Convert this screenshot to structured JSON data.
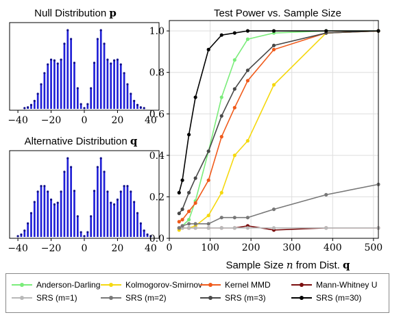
{
  "chart_data": [
    {
      "type": "bar",
      "title": "Null Distribution",
      "title_symbol": "p",
      "xlim": [
        -45,
        45
      ],
      "xticks": [
        "−40",
        "−20",
        "0",
        "20",
        "40"
      ],
      "xtick_values": [
        -40,
        -20,
        0,
        20,
        40
      ],
      "bar_color": "#1f1fd6",
      "bins": [
        {
          "x": -36,
          "h": 0.01
        },
        {
          "x": -34,
          "h": 0.02
        },
        {
          "x": -32,
          "h": 0.05
        },
        {
          "x": -30,
          "h": 0.1
        },
        {
          "x": -28,
          "h": 0.19
        },
        {
          "x": -26,
          "h": 0.31
        },
        {
          "x": -24,
          "h": 0.45
        },
        {
          "x": -22,
          "h": 0.56
        },
        {
          "x": -20,
          "h": 0.62
        },
        {
          "x": -18,
          "h": 0.61
        },
        {
          "x": -16,
          "h": 0.57
        },
        {
          "x": -14,
          "h": 0.62
        },
        {
          "x": -12,
          "h": 0.82
        },
        {
          "x": -10,
          "h": 0.99
        },
        {
          "x": -8,
          "h": 0.88
        },
        {
          "x": -6,
          "h": 0.58
        },
        {
          "x": -4,
          "h": 0.26
        },
        {
          "x": -2,
          "h": 0.06
        },
        {
          "x": 0,
          "h": 0.01
        },
        {
          "x": 2,
          "h": 0.06
        },
        {
          "x": 4,
          "h": 0.26
        },
        {
          "x": 6,
          "h": 0.58
        },
        {
          "x": 8,
          "h": 0.88
        },
        {
          "x": 10,
          "h": 0.99
        },
        {
          "x": 12,
          "h": 0.82
        },
        {
          "x": 14,
          "h": 0.62
        },
        {
          "x": 16,
          "h": 0.57
        },
        {
          "x": 18,
          "h": 0.61
        },
        {
          "x": 20,
          "h": 0.62
        },
        {
          "x": 22,
          "h": 0.56
        },
        {
          "x": 24,
          "h": 0.45
        },
        {
          "x": 26,
          "h": 0.31
        },
        {
          "x": 28,
          "h": 0.19
        },
        {
          "x": 30,
          "h": 0.1
        },
        {
          "x": 32,
          "h": 0.05
        },
        {
          "x": 34,
          "h": 0.02
        },
        {
          "x": 36,
          "h": 0.01
        }
      ]
    },
    {
      "type": "bar",
      "title": "Alternative Distribution",
      "title_symbol": "q",
      "xlim": [
        -45,
        45
      ],
      "xticks": [
        "−40",
        "−20",
        "0",
        "20",
        "40"
      ],
      "xtick_values": [
        -40,
        -20,
        0,
        20,
        40
      ],
      "bar_color": "#1f1fd6",
      "bins": [
        {
          "x": -40,
          "h": 0.01
        },
        {
          "x": -38,
          "h": 0.03
        },
        {
          "x": -36,
          "h": 0.08
        },
        {
          "x": -34,
          "h": 0.17
        },
        {
          "x": -32,
          "h": 0.3
        },
        {
          "x": -30,
          "h": 0.44
        },
        {
          "x": -28,
          "h": 0.57
        },
        {
          "x": -26,
          "h": 0.64
        },
        {
          "x": -24,
          "h": 0.64
        },
        {
          "x": -22,
          "h": 0.57
        },
        {
          "x": -20,
          "h": 0.47
        },
        {
          "x": -18,
          "h": 0.41
        },
        {
          "x": -16,
          "h": 0.43
        },
        {
          "x": -14,
          "h": 0.57
        },
        {
          "x": -12,
          "h": 0.82
        },
        {
          "x": -10,
          "h": 0.99
        },
        {
          "x": -8,
          "h": 0.88
        },
        {
          "x": -6,
          "h": 0.58
        },
        {
          "x": -4,
          "h": 0.26
        },
        {
          "x": -2,
          "h": 0.06
        },
        {
          "x": 0,
          "h": 0.01
        },
        {
          "x": 2,
          "h": 0.06
        },
        {
          "x": 4,
          "h": 0.26
        },
        {
          "x": 6,
          "h": 0.58
        },
        {
          "x": 8,
          "h": 0.88
        },
        {
          "x": 10,
          "h": 0.99
        },
        {
          "x": 12,
          "h": 0.82
        },
        {
          "x": 14,
          "h": 0.57
        },
        {
          "x": 16,
          "h": 0.43
        },
        {
          "x": 18,
          "h": 0.41
        },
        {
          "x": 20,
          "h": 0.47
        },
        {
          "x": 22,
          "h": 0.57
        },
        {
          "x": 24,
          "h": 0.64
        },
        {
          "x": 26,
          "h": 0.64
        },
        {
          "x": 28,
          "h": 0.57
        },
        {
          "x": 30,
          "h": 0.44
        },
        {
          "x": 32,
          "h": 0.3
        },
        {
          "x": 34,
          "h": 0.17
        },
        {
          "x": 36,
          "h": 0.08
        },
        {
          "x": 38,
          "h": 0.03
        },
        {
          "x": 40,
          "h": 0.01
        }
      ]
    },
    {
      "type": "line",
      "title": "Test Power vs. Sample Size",
      "xlabel": "Sample Size",
      "xlabel_symbol": "n",
      "xlabel_suffix": "from Dist.",
      "xlabel_suffix_symbol": "q",
      "xlim": [
        0,
        512
      ],
      "ylim": [
        0,
        1.05
      ],
      "xticks": [
        0,
        100,
        200,
        300,
        400,
        500
      ],
      "yticks": [
        0.0,
        0.2,
        0.4,
        0.6,
        0.8,
        1.0
      ],
      "ytick_labels": [
        "0.0",
        "0.2",
        "0.4",
        "0.6",
        "0.8",
        "1.0"
      ],
      "x": [
        24,
        32,
        48,
        64,
        96,
        128,
        160,
        192,
        256,
        384,
        512
      ],
      "legend_position": "bottom",
      "series": [
        {
          "name": "Anderson-Darling",
          "color": "#7aec7a",
          "values": [
            0.05,
            0.06,
            0.09,
            0.18,
            0.42,
            0.68,
            0.86,
            0.96,
            0.99,
            1.0,
            1.0
          ]
        },
        {
          "name": "Kolmogorov-Smirnov",
          "color": "#f5d80f",
          "values": [
            0.04,
            0.05,
            0.05,
            0.06,
            0.11,
            0.22,
            0.4,
            0.47,
            0.74,
            0.99,
            1.0
          ]
        },
        {
          "name": "Kernel MMD",
          "color": "#f05a1a",
          "values": [
            0.08,
            0.09,
            0.13,
            0.17,
            0.28,
            0.49,
            0.63,
            0.76,
            0.91,
            0.99,
            1.0
          ]
        },
        {
          "name": "Mann-Whitney U",
          "color": "#7a0d0d",
          "values": [
            0.05,
            0.05,
            0.05,
            0.05,
            0.05,
            0.05,
            0.05,
            0.06,
            0.04,
            0.05,
            0.05
          ]
        },
        {
          "name": "SRS (m=1)",
          "color": "#b8b8b8",
          "values": [
            0.05,
            0.05,
            0.05,
            0.05,
            0.05,
            0.05,
            0.05,
            0.05,
            0.05,
            0.05,
            0.05
          ]
        },
        {
          "name": "SRS (m=2)",
          "color": "#777777",
          "values": [
            0.05,
            0.06,
            0.07,
            0.07,
            0.07,
            0.1,
            0.1,
            0.1,
            0.14,
            0.21,
            0.26
          ]
        },
        {
          "name": "SRS (m=3)",
          "color": "#484848",
          "values": [
            0.12,
            0.14,
            0.22,
            0.29,
            0.42,
            0.59,
            0.72,
            0.81,
            0.93,
            0.99,
            1.0
          ]
        },
        {
          "name": "SRS (m=30)",
          "color": "#000000",
          "values": [
            0.22,
            0.28,
            0.5,
            0.68,
            0.91,
            0.98,
            0.99,
            1.0,
            1.0,
            1.0,
            1.0
          ]
        }
      ]
    }
  ]
}
